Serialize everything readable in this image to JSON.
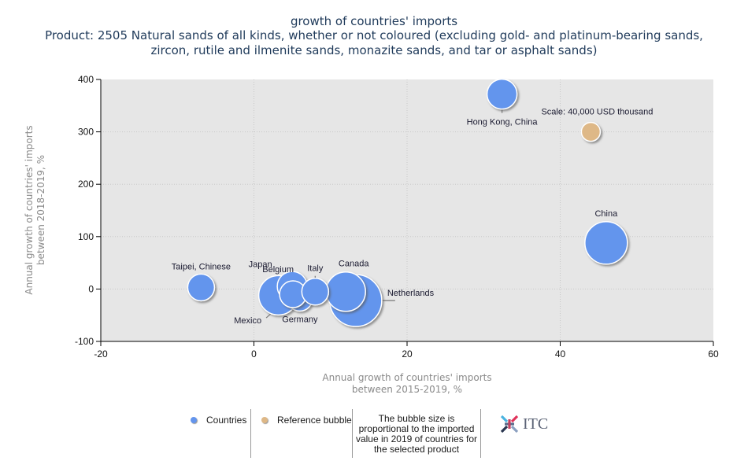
{
  "chart_data": {
    "type": "scatter",
    "subtype": "bubble",
    "title": "growth of countries' imports",
    "subtitle_lines": [
      "Product: 2505 Natural sands of all kinds, whether or not coloured (excluding gold- and platinum-bearing sands,",
      "zircon, rutile and ilmenite sands, monazite sands, and tar or asphalt sands)"
    ],
    "xlabel_lines": [
      "Annual growth of countries' imports",
      "between 2015-2019, %"
    ],
    "ylabel_lines": [
      "Annual growth of countries' imports",
      "between 2018-2019, %"
    ],
    "xlim": [
      -20,
      60
    ],
    "ylim": [
      -100,
      400
    ],
    "xticks": [
      -20,
      0,
      20,
      40,
      60
    ],
    "yticks": [
      -100,
      0,
      100,
      200,
      300,
      400
    ],
    "grid": true,
    "series": [
      {
        "name": "Countries",
        "color": "#6495ed",
        "points": [
          {
            "label": "Japan",
            "x": 3.2,
            "y": -12,
            "size": 25
          },
          {
            "label": "Netherlands",
            "x": 13.3,
            "y": -22,
            "size": 33
          },
          {
            "label": "Canada",
            "x": 12.0,
            "y": -5,
            "size": 25
          },
          {
            "label": "Belgium",
            "x": 5.0,
            "y": 5,
            "size": 19
          },
          {
            "label": "Germany",
            "x": 6.0,
            "y": -18,
            "size": 16
          },
          {
            "label": "Mexico",
            "x": 5.1,
            "y": -10,
            "size": 17
          },
          {
            "label": "Italy",
            "x": 8.0,
            "y": -5,
            "size": 17
          },
          {
            "label": "Taipei, Chinese",
            "x": -6.9,
            "y": 3,
            "size": 17
          },
          {
            "label": "Hong Kong, China",
            "x": 32.4,
            "y": 372,
            "size": 19
          },
          {
            "label": "China",
            "x": 46.0,
            "y": 88,
            "size": 27
          }
        ]
      },
      {
        "name": "Reference bubble",
        "color": "#deb887",
        "points": [
          {
            "label": "Scale: 40,000 USD thousand",
            "x": 44.0,
            "y": 300,
            "size": 12
          }
        ]
      }
    ],
    "legend": {
      "items": [
        {
          "label": "Countries",
          "color": "#6495ed"
        },
        {
          "label": "Reference bubble",
          "color": "#deb887"
        }
      ],
      "placement": "bottom",
      "note": "The bubble size is proportional to the imported value in 2019 of countries for the selected product"
    }
  },
  "logo": {
    "text": "ITC"
  }
}
